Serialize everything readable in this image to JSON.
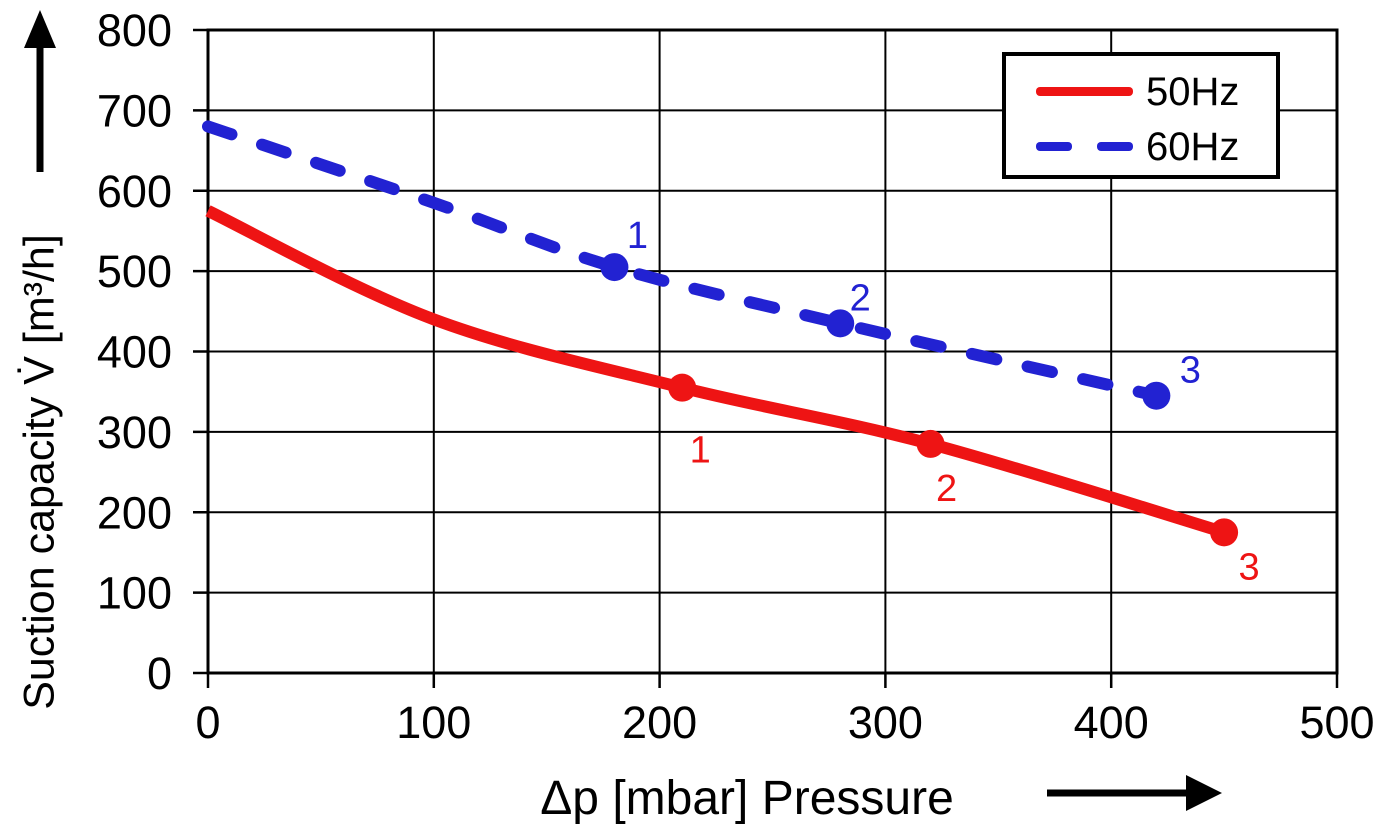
{
  "chart_data": {
    "type": "line",
    "title": "",
    "xlabel": "Δp [mbar]  Pressure",
    "ylabel": "Suction capacity V̇ [m³/h]",
    "xlim": [
      0,
      500
    ],
    "ylim": [
      0,
      800
    ],
    "xticks": [
      0,
      100,
      200,
      300,
      400,
      500
    ],
    "yticks": [
      0,
      100,
      200,
      300,
      400,
      500,
      600,
      700,
      800
    ],
    "grid": true,
    "grid_color": "#000000",
    "axis_color": "#000000",
    "legend": {
      "position": "top-right"
    },
    "series": [
      {
        "name": "50Hz",
        "color": "#ee1414",
        "style": "solid",
        "curve": [
          [
            0,
            575
          ],
          [
            100,
            440
          ],
          [
            210,
            355
          ],
          [
            320,
            285
          ],
          [
            450,
            175
          ]
        ],
        "markers": [
          {
            "x": 210,
            "y": 355,
            "label": "1",
            "dx": 18,
            "dy": 62
          },
          {
            "x": 320,
            "y": 285,
            "label": "2",
            "dx": 16,
            "dy": 44
          },
          {
            "x": 450,
            "y": 175,
            "label": "3",
            "dx": 25,
            "dy": 34
          }
        ]
      },
      {
        "name": "60Hz",
        "color": "#2222d2",
        "style": "dashed",
        "curve": [
          [
            0,
            680
          ],
          [
            100,
            585
          ],
          [
            180,
            505
          ],
          [
            280,
            435
          ],
          [
            420,
            345
          ]
        ],
        "markers": [
          {
            "x": 180,
            "y": 505,
            "label": "1",
            "dx": 23,
            "dy": -32
          },
          {
            "x": 280,
            "y": 435,
            "label": "2",
            "dx": 20,
            "dy": -26
          },
          {
            "x": 420,
            "y": 345,
            "label": "3",
            "dx": 34,
            "dy": -26
          }
        ]
      }
    ]
  }
}
